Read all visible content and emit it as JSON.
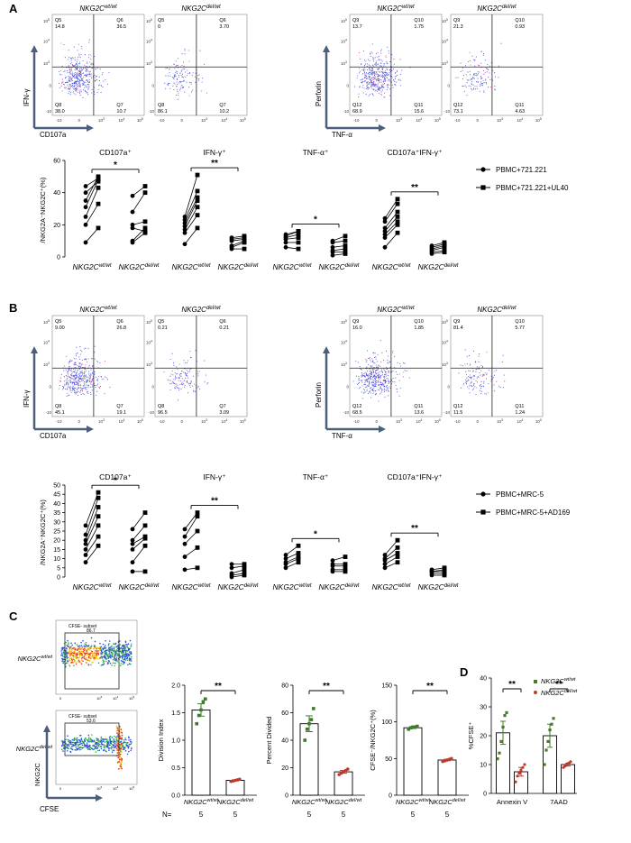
{
  "panel_letters": {
    "A": "A",
    "B": "B",
    "C": "C",
    "D": "D"
  },
  "genotype": {
    "wt": "NKG2C",
    "wt_sup": "wt/wt",
    "del": "NKG2C",
    "del_sup": "del/wt"
  },
  "flow_axes": {
    "ifng": "IFN-γ",
    "cd107a": "CD107a",
    "perforin": "Perforin",
    "tnfa": "TNF-α",
    "nkg2c": "NKG2C",
    "cfse": "CFSE"
  },
  "flow_ticks": {
    "neg": "-10",
    "pos": [
      "0",
      "10",
      "10",
      "10"
    ],
    "exp": [
      "3",
      "4",
      "5"
    ]
  },
  "panel_A": {
    "plots": [
      {
        "title_geno": "wt",
        "quad": [
          "Q5",
          "Q6",
          "Q7",
          "Q8"
        ],
        "vals": {
          "ul": "14.8",
          "ur": "36.5",
          "lr": "10.7",
          "ll": "38.0"
        }
      },
      {
        "title_geno": "del",
        "quad": [
          "Q5",
          "Q6",
          "Q7",
          "Q8"
        ],
        "vals": {
          "ul": "0",
          "ur": "3.70",
          "lr": "10.2",
          "ll": "86.1"
        }
      },
      {
        "title_geno": "wt",
        "quad": [
          "Q9",
          "Q10",
          "Q11",
          "Q12"
        ],
        "vals": {
          "ul": "13.7",
          "ur": "1.75",
          "lr": "15.6",
          "ll": "68.9"
        }
      },
      {
        "title_geno": "del",
        "quad": [
          "Q9",
          "Q10",
          "Q11",
          "Q12"
        ],
        "vals": {
          "ul": "21.3",
          "ur": "0.93",
          "lr": "4.63",
          "ll": "73.1"
        }
      }
    ],
    "chart_data": {
      "type": "scatter",
      "ylabel": "/NKG2A⁻NKG2C⁺(%)",
      "ylim": [
        0,
        60
      ],
      "yticks": [
        0,
        20,
        40,
        60
      ],
      "groups": [
        "CD107a⁺",
        "IFN-γ⁺",
        "TNF-α⁺",
        "CD107a⁺IFN-γ⁺"
      ],
      "significance": [
        "*",
        "**",
        "*",
        "**"
      ],
      "legend": [
        "PBMC+721.221",
        "PBMC+721.221+UL40"
      ],
      "series": [
        {
          "group": "CD107a⁺",
          "genotype": "wt",
          "circle": [
            9,
            20,
            25,
            31,
            35,
            40,
            44
          ],
          "square": [
            18,
            33,
            43,
            48,
            50,
            47,
            49
          ]
        },
        {
          "group": "CD107a⁺",
          "genotype": "del",
          "circle": [
            9,
            10,
            18,
            20,
            28,
            38
          ],
          "square": [
            15,
            18,
            16,
            22,
            40,
            44
          ]
        },
        {
          "group": "IFN-γ⁺",
          "genotype": "wt",
          "circle": [
            8,
            15,
            17,
            19,
            21,
            23,
            25
          ],
          "square": [
            18,
            26,
            31,
            35,
            37,
            41,
            51
          ]
        },
        {
          "group": "IFN-γ⁺",
          "genotype": "del",
          "circle": [
            5,
            6,
            7,
            10,
            11,
            12
          ],
          "square": [
            5,
            9,
            10,
            11,
            12,
            13
          ]
        },
        {
          "group": "TNF-α⁺",
          "genotype": "wt",
          "circle": [
            6,
            9,
            11,
            12,
            13,
            14
          ],
          "square": [
            5,
            9,
            12,
            14,
            16,
            16
          ]
        },
        {
          "group": "TNF-α⁺",
          "genotype": "del",
          "circle": [
            1,
            3,
            4,
            6,
            9,
            10
          ],
          "square": [
            2,
            3,
            5,
            7,
            10,
            13
          ]
        },
        {
          "group": "CD107a⁺IFN-γ⁺",
          "genotype": "wt",
          "circle": [
            6,
            12,
            14,
            16,
            18,
            22,
            24
          ],
          "square": [
            15,
            20,
            22,
            25,
            28,
            33,
            36
          ]
        },
        {
          "group": "CD107a⁺IFN-γ⁺",
          "genotype": "del",
          "circle": [
            2,
            3,
            4,
            5,
            6,
            7
          ],
          "square": [
            3,
            4,
            6,
            7,
            8,
            9
          ]
        }
      ]
    }
  },
  "panel_B": {
    "plots": [
      {
        "title_geno": "wt",
        "quad": [
          "Q5",
          "Q6",
          "Q7",
          "Q8"
        ],
        "vals": {
          "ul": "9.00",
          "ur": "26.8",
          "lr": "19.1",
          "ll": "45.1"
        }
      },
      {
        "title_geno": "del",
        "quad": [
          "Q5",
          "Q6",
          "Q7",
          "Q8"
        ],
        "vals": {
          "ul": "0.21",
          "ur": "0.21",
          "lr": "3.09",
          "ll": "96.5"
        }
      },
      {
        "title_geno": "wt",
        "quad": [
          "Q9",
          "Q10",
          "Q11",
          "Q12"
        ],
        "vals": {
          "ul": "16.0",
          "ur": "1.85",
          "lr": "13.6",
          "ll": "68.5"
        }
      },
      {
        "title_geno": "del",
        "quad": [
          "Q9",
          "Q10",
          "Q11",
          "Q12"
        ],
        "vals": {
          "ul": "81.4",
          "ur": "5.77",
          "lr": "1.24",
          "ll": "11.5"
        }
      }
    ],
    "chart_data": {
      "type": "scatter",
      "ylabel": "/NKG2A⁻NKG2C⁺(%)",
      "ylim": [
        0,
        50
      ],
      "yticks": [
        0,
        5,
        10,
        15,
        20,
        25,
        30,
        35,
        40,
        45,
        50
      ],
      "groups": [
        "CD107a⁺",
        "IFN-γ⁺",
        "TNF-α⁺",
        "CD107a⁺IFN-γ⁺"
      ],
      "significance": [
        "*",
        "**",
        "*",
        "**"
      ],
      "legend": [
        "PBMC+MRC-5",
        "PBMC+MRC-5+AD169"
      ],
      "series": [
        {
          "group": "CD107a⁺",
          "genotype": "wt",
          "circle": [
            8,
            12,
            15,
            18,
            20,
            23,
            28
          ],
          "square": [
            17,
            22,
            28,
            33,
            38,
            43,
            46
          ]
        },
        {
          "group": "CD107a⁺",
          "genotype": "del",
          "circle": [
            3,
            8,
            15,
            18,
            20,
            26
          ],
          "square": [
            3,
            17,
            21,
            22,
            28,
            35
          ]
        },
        {
          "group": "IFN-γ⁺",
          "genotype": "wt",
          "circle": [
            4,
            11,
            18,
            22,
            26
          ],
          "square": [
            5,
            16,
            25,
            33,
            35
          ]
        },
        {
          "group": "IFN-γ⁺",
          "genotype": "del",
          "circle": [
            0,
            1,
            2,
            5,
            7
          ],
          "square": [
            1,
            2,
            4,
            6,
            7
          ]
        },
        {
          "group": "TNF-α⁺",
          "genotype": "wt",
          "circle": [
            5,
            7,
            8,
            10,
            12
          ],
          "square": [
            8,
            10,
            11,
            13,
            17
          ]
        },
        {
          "group": "TNF-α⁺",
          "genotype": "del",
          "circle": [
            3,
            4,
            6,
            7,
            9
          ],
          "square": [
            3,
            4,
            6,
            7,
            11
          ]
        },
        {
          "group": "CD107a⁺IFN-γ⁺",
          "genotype": "wt",
          "circle": [
            5,
            7,
            9,
            10,
            12
          ],
          "square": [
            8,
            11,
            13,
            16,
            20
          ]
        },
        {
          "group": "CD107a⁺IFN-γ⁺",
          "genotype": "del",
          "circle": [
            1,
            2,
            3,
            3,
            4
          ],
          "square": [
            1,
            2,
            3,
            4,
            5
          ]
        }
      ]
    }
  },
  "panel_C": {
    "gate_label": "CFSE- subset",
    "gate_vals": [
      "86.7",
      "53.6"
    ],
    "chart_data": [
      {
        "type": "bar",
        "ylabel": "Division Index",
        "ylim": [
          0,
          2
        ],
        "yticks": [
          "0.0",
          "0.5",
          "1.0",
          "1.5",
          "2.0"
        ],
        "values": [
          1.55,
          0.27
        ],
        "points": [
          [
            1.3,
            1.45,
            1.55,
            1.7,
            1.75
          ],
          [
            0.25,
            0.26,
            0.27,
            0.28,
            0.29
          ]
        ],
        "sig": "**"
      },
      {
        "type": "bar",
        "ylabel": "Percent Divided",
        "ylim": [
          0,
          80
        ],
        "yticks": [
          "0",
          "20",
          "40",
          "60",
          "80"
        ],
        "values": [
          52,
          17
        ],
        "points": [
          [
            40,
            48,
            52,
            55,
            63
          ],
          [
            15,
            16,
            17,
            18,
            19
          ]
        ],
        "sig": "**"
      },
      {
        "type": "bar",
        "ylabel": "CFSE⁻/NKG2C⁺(%)",
        "ylim": [
          0,
          150
        ],
        "yticks": [
          "0",
          "50",
          "100",
          "150"
        ],
        "values": [
          92,
          48
        ],
        "points": [
          [
            90,
            92,
            93,
            93,
            94
          ],
          [
            46,
            47,
            48,
            49,
            50
          ]
        ],
        "sig": "**"
      }
    ],
    "n_label": "N=",
    "n_values": [
      "5",
      "5"
    ]
  },
  "panel_D": {
    "chart_data": {
      "type": "bar",
      "ylabel": "%CFSE⁺",
      "ylim": [
        0,
        40
      ],
      "yticks": [
        "0",
        "10",
        "20",
        "30",
        "40"
      ],
      "categories": [
        "Annexin V",
        "7AAD"
      ],
      "series": [
        {
          "values": [
            21,
            20
          ],
          "points": [
            [
              12,
              14,
              18,
              23,
              27,
              28
            ],
            [
              10,
              15,
              18,
              22,
              24,
              26
            ]
          ]
        },
        {
          "values": [
            7.5,
            10
          ],
          "points": [
            [
              4,
              6,
              7,
              8,
              9,
              10
            ],
            [
              9,
              9.5,
              10,
              10.5,
              11
            ]
          ]
        }
      ],
      "sig": [
        "**",
        "**"
      ]
    },
    "colors": {
      "wt": "#4a7a2a",
      "del": "#c0392b"
    }
  }
}
